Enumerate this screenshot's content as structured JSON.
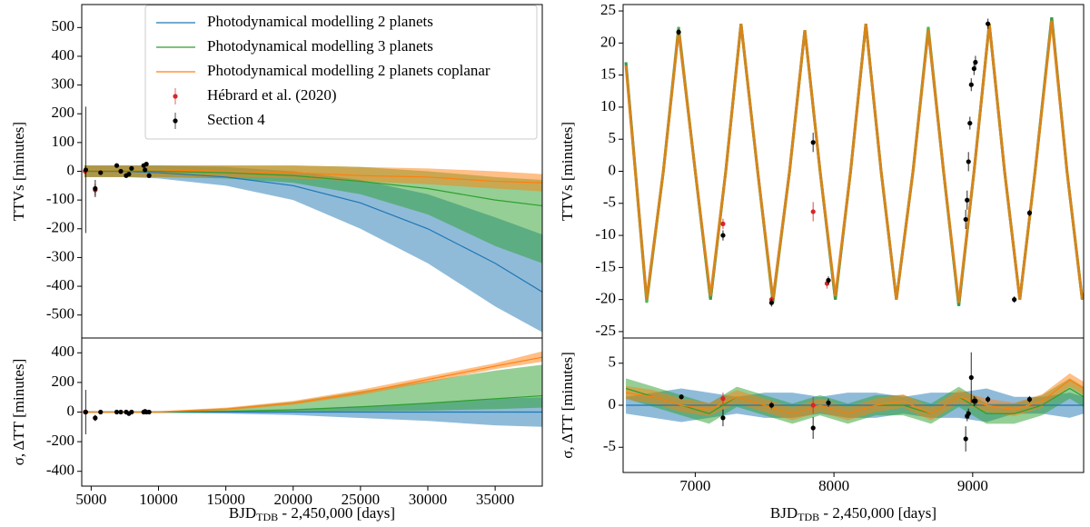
{
  "chart_data": [
    {
      "type": "line",
      "ylabel": "TTVs [minutes]",
      "legend": "upper right",
      "xlim": [
        4300,
        38500
      ],
      "ylim": [
        -580,
        580
      ],
      "yticks": [
        -500,
        -400,
        -300,
        -200,
        -100,
        0,
        100,
        200,
        300,
        400,
        500
      ],
      "x": [
        4500,
        7500,
        10000,
        15000,
        20000,
        25000,
        30000,
        35000,
        38500
      ],
      "series": [
        {
          "name": "Photodynamical modelling 2 planets",
          "color": "#1f77b4",
          "values": [
            0,
            0,
            -5,
            -20,
            -50,
            -110,
            -200,
            -320,
            -420
          ],
          "lower": [
            -20,
            -20,
            -25,
            -50,
            -100,
            -200,
            -320,
            -470,
            -560
          ],
          "upper": [
            20,
            20,
            20,
            15,
            0,
            -30,
            -80,
            -160,
            -220
          ]
        },
        {
          "name": "Photodynamical modelling 3 planets",
          "color": "#2ca02c",
          "values": [
            0,
            0,
            0,
            -5,
            -15,
            -35,
            -60,
            -100,
            -120
          ],
          "lower": [
            -20,
            -20,
            -20,
            -25,
            -40,
            -80,
            -150,
            -260,
            -320
          ],
          "upper": [
            20,
            20,
            20,
            20,
            20,
            15,
            0,
            -20,
            -30
          ]
        },
        {
          "name": "Photodynamical modelling 2 planets coplanar",
          "color": "#ff7f0e",
          "values": [
            5,
            5,
            5,
            0,
            -5,
            -15,
            -20,
            -35,
            -40
          ],
          "lower": [
            -20,
            -20,
            -20,
            -20,
            -25,
            -35,
            -45,
            -60,
            -70
          ],
          "upper": [
            20,
            20,
            20,
            20,
            20,
            15,
            10,
            0,
            -10
          ]
        }
      ],
      "observations": [
        {
          "name": "Hébrard et al. (2020)",
          "color": "#d62728",
          "x": [
            4550,
            5300
          ],
          "values": [
            0,
            -65
          ],
          "errors": [
            10,
            20
          ]
        },
        {
          "name": "Section 4",
          "color": "#000000",
          "x": [
            4600,
            5300,
            5700,
            6900,
            7200,
            7600,
            7800,
            8000,
            8900,
            9000,
            9100,
            9300
          ],
          "values": [
            5,
            -60,
            -5,
            20,
            0,
            -15,
            -10,
            10,
            20,
            5,
            25,
            -15
          ],
          "errors": [
            220,
            30,
            5,
            5,
            5,
            5,
            5,
            5,
            5,
            5,
            5,
            5
          ]
        }
      ]
    },
    {
      "type": "line",
      "ylabel": "σ, ΔTT [minutes]",
      "xlabel": {
        "main": "BJD",
        "sub": "TDB",
        "rest": " - 2,450,000 [days]"
      },
      "xlim": [
        4300,
        38500
      ],
      "xticks": [
        5000,
        10000,
        15000,
        20000,
        25000,
        30000,
        35000
      ],
      "ylim": [
        -500,
        500
      ],
      "yticks": [
        -400,
        -200,
        0,
        200,
        400
      ],
      "x": [
        4500,
        7500,
        10000,
        15000,
        20000,
        25000,
        30000,
        35000,
        38500
      ],
      "series": [
        {
          "color": "#1f77b4",
          "values": [
            0,
            0,
            0,
            0,
            0,
            0,
            0,
            0,
            0
          ],
          "lower": [
            -5,
            -5,
            -5,
            -10,
            -20,
            -40,
            -60,
            -90,
            -100
          ],
          "upper": [
            5,
            5,
            5,
            10,
            20,
            40,
            60,
            90,
            100
          ]
        },
        {
          "color": "#2ca02c",
          "values": [
            0,
            0,
            0,
            5,
            15,
            35,
            60,
            90,
            110
          ],
          "lower": [
            0,
            0,
            0,
            0,
            0,
            5,
            10,
            20,
            30
          ],
          "upper": [
            0,
            0,
            5,
            25,
            70,
            140,
            210,
            280,
            320
          ]
        },
        {
          "color": "#ff7f0e",
          "values": [
            0,
            0,
            0,
            20,
            60,
            130,
            220,
            310,
            370
          ],
          "lower": [
            0,
            0,
            0,
            10,
            50,
            115,
            200,
            290,
            340
          ],
          "upper": [
            5,
            5,
            5,
            30,
            75,
            150,
            240,
            330,
            410
          ]
        }
      ],
      "observations": [
        {
          "color": "#d62728",
          "x": [
            4550,
            5300
          ],
          "values": [
            0,
            -40
          ],
          "errors": [
            10,
            20
          ]
        },
        {
          "color": "#000000",
          "x": [
            4600,
            5300,
            5700,
            6900,
            7200,
            7600,
            7800,
            8000,
            8900,
            9000,
            9100,
            9300
          ],
          "values": [
            0,
            -40,
            0,
            0,
            0,
            0,
            -10,
            0,
            0,
            5,
            0,
            0
          ],
          "errors": [
            150,
            20,
            5,
            5,
            5,
            5,
            10,
            5,
            5,
            5,
            5,
            5
          ]
        }
      ]
    },
    {
      "type": "line",
      "ylabel": "TTVs [minutes]",
      "xlim": [
        6480,
        9800
      ],
      "ylim": [
        -26,
        26
      ],
      "yticks": [
        -25,
        -20,
        -15,
        -10,
        -5,
        0,
        5,
        10,
        15,
        20,
        25
      ],
      "x": [
        6500,
        6650,
        6770,
        6880,
        7000,
        7110,
        7220,
        7330,
        7450,
        7560,
        7680,
        7790,
        7900,
        8010,
        8120,
        8230,
        8340,
        8450,
        8570,
        8680,
        8790,
        8900,
        9010,
        9120,
        9230,
        9340,
        9450,
        9570,
        9680,
        9790,
        9800
      ],
      "series": [
        {
          "color": "#1f77b4",
          "values": [
            17,
            -20,
            0,
            22,
            0,
            -20,
            0,
            23,
            0,
            -20,
            0,
            22,
            0,
            -20,
            0,
            23,
            0,
            -20,
            0,
            22,
            0,
            -21,
            0,
            23,
            0,
            -20,
            0,
            24,
            0,
            -20,
            -19
          ]
        },
        {
          "color": "#2ca02c",
          "values": [
            17,
            -20.5,
            0,
            22.5,
            0,
            -20,
            0,
            23,
            0,
            -20.5,
            0,
            22,
            0,
            -20,
            0,
            23,
            0,
            -20,
            0,
            22.5,
            0,
            -21,
            0,
            23,
            0,
            -20,
            0,
            24,
            0,
            -20,
            -19
          ]
        },
        {
          "color": "#ff7f0e",
          "values": [
            16.5,
            -20,
            0,
            22,
            0,
            -19.5,
            0,
            23,
            0,
            -20,
            0,
            22,
            0,
            -19.5,
            0,
            23,
            0,
            -20,
            0,
            22,
            0,
            -20.5,
            0,
            23,
            0,
            -20,
            0,
            23.5,
            0,
            -20,
            -19
          ]
        }
      ],
      "observations": [
        {
          "color": "#d62728",
          "x": [
            7200,
            7550,
            7850,
            7950
          ],
          "values": [
            -8.2,
            -20,
            -6.3,
            -17.5
          ],
          "errors": [
            0.8,
            0.5,
            1.5,
            0.8
          ]
        },
        {
          "color": "#000000",
          "x": [
            6880,
            7200,
            7550,
            7850,
            7960,
            8950,
            8960,
            8970,
            8980,
            8990,
            9010,
            9020,
            9110,
            9300,
            9410
          ],
          "values": [
            21.7,
            -10,
            -20.5,
            4.5,
            -17,
            -7.5,
            -4.5,
            1.5,
            7.5,
            13.5,
            16,
            17,
            23,
            -20,
            -6.5
          ],
          "errors": [
            0.5,
            0.8,
            0.6,
            1.5,
            0.6,
            1.5,
            1.5,
            1.5,
            1,
            1,
            1,
            1,
            0.8,
            0.5,
            0.5
          ]
        }
      ]
    },
    {
      "type": "line",
      "ylabel": "σ, ΔTT [minutes]",
      "xlabel": {
        "main": "BJD",
        "sub": "TDB",
        "rest": " - 2,450,000 [days]"
      },
      "xlim": [
        6480,
        9800
      ],
      "xticks": [
        7000,
        8000,
        9000
      ],
      "ylim": [
        -8,
        8
      ],
      "yticks": [
        -5,
        0,
        5
      ],
      "x": [
        6500,
        6700,
        6900,
        7100,
        7300,
        7500,
        7700,
        7900,
        8100,
        8300,
        8500,
        8700,
        8900,
        9100,
        9300,
        9500,
        9700,
        9800
      ],
      "series": [
        {
          "color": "#1f77b4",
          "values": [
            0,
            0,
            0,
            0,
            0,
            0,
            0,
            0,
            0,
            0,
            0,
            0,
            0,
            0,
            0,
            0,
            0,
            0
          ],
          "lower": [
            -1,
            -1.5,
            -2,
            -1.5,
            -1,
            -1.5,
            -1.5,
            -1,
            -1.5,
            -1.5,
            -1,
            -1.5,
            -1.5,
            -2,
            -1,
            -1,
            -1.5,
            -1
          ],
          "upper": [
            1,
            1.5,
            2,
            1.5,
            1,
            1.5,
            1.5,
            1,
            1.5,
            1.5,
            1,
            1.5,
            1.5,
            2,
            1,
            1,
            1.5,
            1
          ]
        },
        {
          "color": "#2ca02c",
          "values": [
            2,
            1,
            0,
            -1,
            1,
            0,
            -1,
            0,
            -1,
            0,
            0,
            -1,
            1,
            -1,
            -1,
            0,
            2,
            1
          ],
          "lower": [
            0.8,
            -0.2,
            -1.2,
            -2.2,
            -0.2,
            -1.2,
            -2.2,
            -1.2,
            -2.2,
            -1.2,
            -1.2,
            -2.2,
            -0.2,
            -2.2,
            -2.2,
            -1.2,
            0.8,
            -0.2
          ],
          "upper": [
            3.2,
            2.2,
            1.2,
            0.2,
            2.2,
            1.2,
            0.2,
            1.2,
            0.2,
            1.2,
            1.2,
            0.2,
            2.2,
            0.2,
            0.2,
            1.2,
            3.2,
            2.2
          ]
        },
        {
          "color": "#ff7f0e",
          "values": [
            1.5,
            1,
            0,
            -0.5,
            1,
            0,
            -1,
            0,
            -1,
            0,
            0.5,
            -1,
            1,
            0,
            -0.5,
            0.5,
            3,
            2
          ],
          "lower": [
            0.7,
            0.2,
            -0.8,
            -1.3,
            0.2,
            -0.8,
            -1.8,
            -0.8,
            -1.8,
            -0.8,
            -0.3,
            -1.8,
            0.2,
            -0.8,
            -1.3,
            -0.3,
            2.2,
            1.2
          ],
          "upper": [
            2.3,
            1.8,
            0.8,
            0.3,
            1.8,
            0.8,
            -0.2,
            0.8,
            -0.2,
            0.8,
            1.3,
            -0.2,
            1.8,
            0.8,
            0.3,
            1.3,
            3.8,
            2.8
          ]
        }
      ],
      "observations": [
        {
          "color": "#d62728",
          "x": [
            7200,
            7550,
            7850
          ],
          "values": [
            0.8,
            0,
            0
          ],
          "errors": [
            0.7,
            0.5,
            1
          ]
        },
        {
          "color": "#000000",
          "x": [
            6900,
            7200,
            7550,
            7850,
            7960,
            8950,
            8960,
            8970,
            8990,
            9010,
            9020,
            9110,
            9410
          ],
          "values": [
            1,
            -1.5,
            0,
            -2.7,
            0.3,
            -4,
            -1.3,
            -1,
            3.3,
            0.5,
            0.5,
            0.7,
            0.7
          ],
          "errors": [
            0.3,
            1,
            0.3,
            1.3,
            0.5,
            1.5,
            0.6,
            0.6,
            3,
            0.6,
            0.5,
            0.4,
            0.4
          ]
        }
      ]
    }
  ]
}
